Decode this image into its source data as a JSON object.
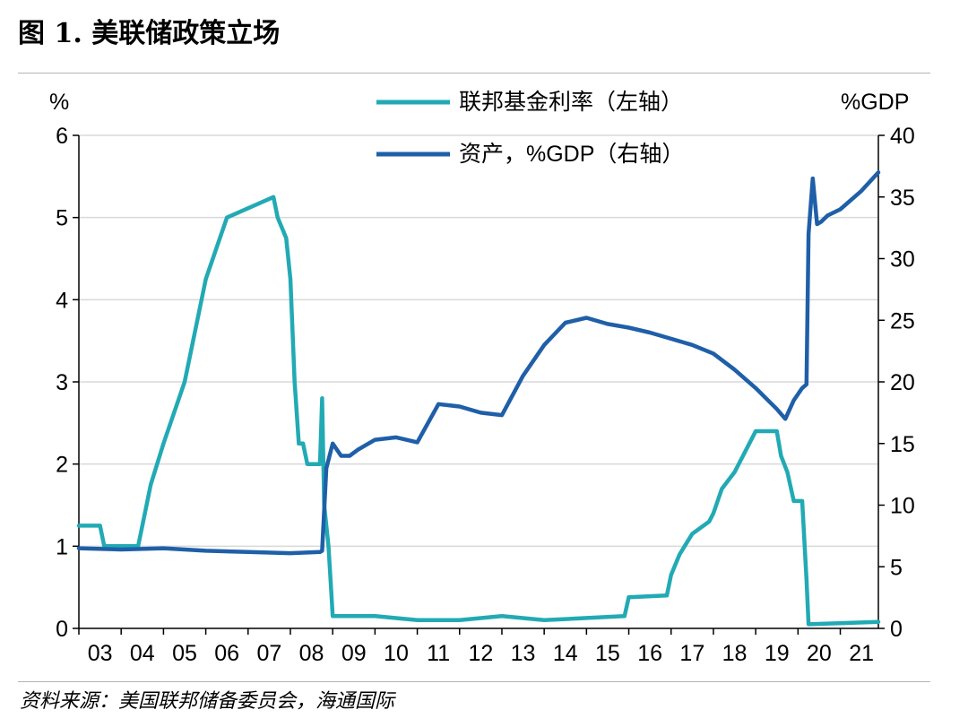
{
  "figure": {
    "title": "图 1. 美联储政策立场",
    "source": "资料来源：美国联邦储备委员会，海通国际"
  },
  "chart_data": {
    "type": "line",
    "title": "图 1. 美联储政策立场",
    "x_axis": {
      "tick_labels": [
        "03",
        "04",
        "05",
        "06",
        "07",
        "08",
        "09",
        "10",
        "11",
        "12",
        "13",
        "14",
        "15",
        "16",
        "17",
        "18",
        "19",
        "20",
        "21"
      ],
      "range": [
        2003.0,
        2021.9
      ]
    },
    "y_left": {
      "label": "%",
      "range": [
        0,
        6
      ],
      "ticks": [
        0,
        1,
        2,
        3,
        4,
        5,
        6
      ]
    },
    "y_right": {
      "label": "%GDP",
      "range": [
        0,
        40
      ],
      "ticks": [
        0,
        5,
        10,
        15,
        20,
        25,
        30,
        35,
        40
      ]
    },
    "legend_placement": "top-center",
    "grid": "horizontal",
    "series": [
      {
        "name": "联邦基金利率（左轴）",
        "axis": "left",
        "color": "#22aab4",
        "x": [
          2003.0,
          2003.4,
          2003.5,
          2003.6,
          2003.7,
          2004.4,
          2004.5,
          2004.7,
          2005.0,
          2005.5,
          2006.0,
          2006.5,
          2007.6,
          2007.7,
          2007.9,
          2008.0,
          2008.1,
          2008.2,
          2008.3,
          2008.4,
          2008.7,
          2008.75,
          2008.8,
          2008.9,
          2008.96,
          2009.0,
          2010.0,
          2011.0,
          2011.5,
          2012.0,
          2013.0,
          2014.0,
          2015.9,
          2016.0,
          2016.9,
          2017.0,
          2017.2,
          2017.5,
          2017.9,
          2018.0,
          2018.2,
          2018.5,
          2018.8,
          2019.0,
          2019.5,
          2019.6,
          2019.75,
          2019.9,
          2020.1,
          2020.2,
          2020.25,
          2021.9
        ],
        "y": [
          1.25,
          1.25,
          1.25,
          1.0,
          1.0,
          1.0,
          1.25,
          1.75,
          2.25,
          3.0,
          4.25,
          5.0,
          5.25,
          5.0,
          4.75,
          4.25,
          3.0,
          2.25,
          2.25,
          2.0,
          2.0,
          2.8,
          1.5,
          1.0,
          0.5,
          0.15,
          0.15,
          0.1,
          0.1,
          0.1,
          0.15,
          0.1,
          0.15,
          0.38,
          0.4,
          0.65,
          0.9,
          1.15,
          1.3,
          1.4,
          1.7,
          1.9,
          2.2,
          2.4,
          2.4,
          2.1,
          1.9,
          1.55,
          1.55,
          0.6,
          0.05,
          0.08
        ]
      },
      {
        "name": "资产，%GDP（右轴）",
        "axis": "right",
        "color": "#1f5fa8",
        "x": [
          2003.0,
          2004.0,
          2005.0,
          2006.0,
          2007.0,
          2008.0,
          2008.7,
          2008.75,
          2008.85,
          2009.0,
          2009.2,
          2009.4,
          2009.6,
          2010.0,
          2010.5,
          2011.0,
          2011.5,
          2012.0,
          2012.5,
          2013.0,
          2013.5,
          2014.0,
          2014.5,
          2015.0,
          2015.5,
          2016.0,
          2016.5,
          2017.0,
          2017.5,
          2018.0,
          2018.5,
          2019.0,
          2019.5,
          2019.7,
          2019.9,
          2020.1,
          2020.2,
          2020.25,
          2020.35,
          2020.45,
          2020.55,
          2020.7,
          2021.0,
          2021.5,
          2021.9
        ],
        "y": [
          6.5,
          6.4,
          6.5,
          6.3,
          6.2,
          6.1,
          6.2,
          6.3,
          13.0,
          15.0,
          14.0,
          14.0,
          14.5,
          15.3,
          15.5,
          15.1,
          18.2,
          18.0,
          17.5,
          17.3,
          20.5,
          23.0,
          24.8,
          25.2,
          24.7,
          24.4,
          24.0,
          23.5,
          23.0,
          22.3,
          21.0,
          19.5,
          17.8,
          17.0,
          18.5,
          19.5,
          19.8,
          32.0,
          36.5,
          32.8,
          33.0,
          33.5,
          34.0,
          35.5,
          37.0
        ]
      }
    ]
  }
}
